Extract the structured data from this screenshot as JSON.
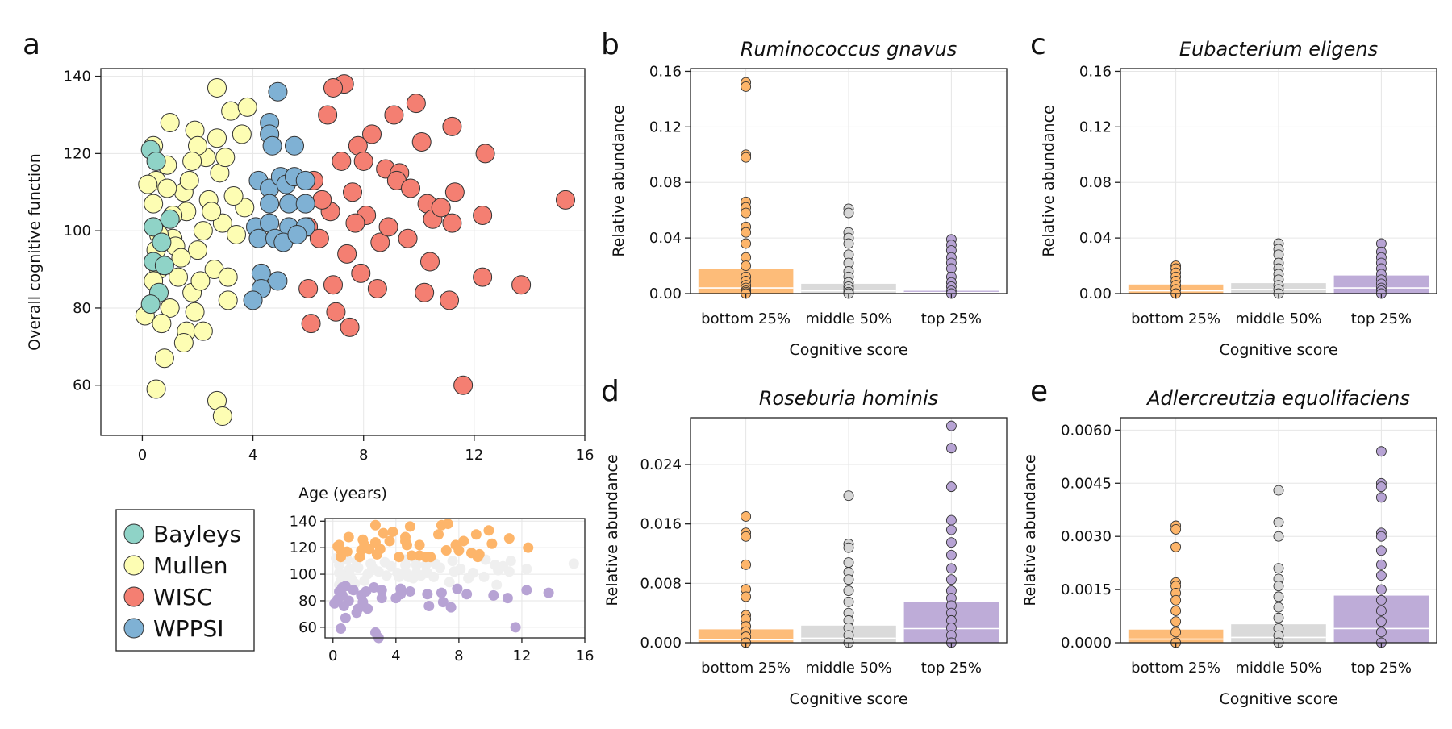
{
  "colors": {
    "Bayleys": "#8fd3c7",
    "Mullen": "#fdfdb3",
    "WISC": "#f47f72",
    "WPPSI": "#7fb1d4",
    "bottom": "#fdb56a",
    "middle": "#d6d6d6",
    "top": "#b7a3d4",
    "inset_middle": "#efefef"
  },
  "chart_data": [
    {
      "id": "a",
      "letter": "a",
      "type": "scatter",
      "xlabel": "Age (years)",
      "ylabel": "Overall cognitive function",
      "xlim": [
        -1.5,
        16
      ],
      "ylim": [
        47,
        142
      ],
      "xticks": [
        0,
        4,
        8,
        12,
        16
      ],
      "yticks": [
        60,
        80,
        100,
        120,
        140
      ],
      "series": [
        {
          "name": "Bayleys",
          "points": [
            [
              0.3,
              121
            ],
            [
              0.5,
              118
            ],
            [
              0.4,
              101
            ],
            [
              0.7,
              97
            ],
            [
              0.4,
              92
            ],
            [
              1.0,
              103
            ],
            [
              0.6,
              84
            ],
            [
              0.3,
              81
            ],
            [
              0.8,
              91
            ]
          ]
        },
        {
          "name": "Mullen",
          "points": [
            [
              2.7,
              137
            ],
            [
              1.0,
              128
            ],
            [
              0.4,
              122
            ],
            [
              1.9,
              126
            ],
            [
              0.5,
              113
            ],
            [
              2.3,
              119
            ],
            [
              0.2,
              112
            ],
            [
              3.2,
              131
            ],
            [
              3.8,
              132
            ],
            [
              2.0,
              122
            ],
            [
              0.9,
              117
            ],
            [
              1.5,
              110
            ],
            [
              2.7,
              124
            ],
            [
              3.6,
              125
            ],
            [
              0.4,
              107
            ],
            [
              1.6,
              105
            ],
            [
              2.2,
              100
            ],
            [
              1.1,
              98
            ],
            [
              0.5,
              95
            ],
            [
              2.9,
              102
            ],
            [
              3.4,
              99
            ],
            [
              2.0,
              95
            ],
            [
              0.6,
              90
            ],
            [
              1.3,
              88
            ],
            [
              1.8,
              84
            ],
            [
              2.6,
              90
            ],
            [
              0.4,
              87
            ],
            [
              1.0,
              80
            ],
            [
              3.1,
              88
            ],
            [
              0.1,
              78
            ],
            [
              0.7,
              76
            ],
            [
              1.6,
              74
            ],
            [
              2.2,
              74
            ],
            [
              0.8,
              67
            ],
            [
              0.5,
              59
            ],
            [
              2.7,
              56
            ],
            [
              2.9,
              52
            ],
            [
              3.1,
              82
            ],
            [
              1.5,
              71
            ],
            [
              1.9,
              79
            ],
            [
              2.4,
              108
            ],
            [
              3.7,
              106
            ],
            [
              2.8,
              115
            ],
            [
              1.2,
              96
            ],
            [
              0.4,
              101
            ],
            [
              3.0,
              119
            ],
            [
              1.7,
              113
            ],
            [
              2.5,
              105
            ],
            [
              0.9,
              111
            ],
            [
              1.4,
              93
            ],
            [
              2.1,
              87
            ],
            [
              0.6,
              99
            ],
            [
              3.3,
              109
            ],
            [
              1.8,
              118
            ],
            [
              1.1,
              104
            ]
          ]
        },
        {
          "name": "WISC",
          "points": [
            [
              7.3,
              138
            ],
            [
              6.9,
              137
            ],
            [
              9.9,
              133
            ],
            [
              11.2,
              127
            ],
            [
              6.7,
              130
            ],
            [
              9.1,
              130
            ],
            [
              8.3,
              125
            ],
            [
              10.1,
              123
            ],
            [
              12.4,
              120
            ],
            [
              7.8,
              122
            ],
            [
              7.2,
              118
            ],
            [
              8.8,
              116
            ],
            [
              6.2,
              113
            ],
            [
              9.3,
              115
            ],
            [
              7.6,
              110
            ],
            [
              10.3,
              107
            ],
            [
              11.3,
              110
            ],
            [
              12.3,
              104
            ],
            [
              6.8,
              105
            ],
            [
              8.1,
              104
            ],
            [
              9.6,
              98
            ],
            [
              10.5,
              103
            ],
            [
              6.0,
              101
            ],
            [
              11.2,
              102
            ],
            [
              7.4,
              94
            ],
            [
              8.6,
              97
            ],
            [
              10.4,
              92
            ],
            [
              6.0,
              85
            ],
            [
              7.9,
              89
            ],
            [
              8.5,
              85
            ],
            [
              10.2,
              84
            ],
            [
              6.9,
              86
            ],
            [
              11.1,
              82
            ],
            [
              12.3,
              88
            ],
            [
              13.7,
              86
            ],
            [
              15.3,
              108
            ],
            [
              6.1,
              76
            ],
            [
              7.0,
              79
            ],
            [
              7.5,
              75
            ],
            [
              11.6,
              60
            ],
            [
              9.2,
              113
            ],
            [
              8.0,
              118
            ],
            [
              6.5,
              108
            ],
            [
              9.7,
              111
            ],
            [
              7.7,
              102
            ],
            [
              10.8,
              106
            ],
            [
              8.9,
              101
            ],
            [
              6.4,
              98
            ]
          ]
        },
        {
          "name": "WPPSI",
          "points": [
            [
              4.9,
              136
            ],
            [
              4.6,
              128
            ],
            [
              4.6,
              125
            ],
            [
              4.7,
              122
            ],
            [
              5.5,
              122
            ],
            [
              4.2,
              113
            ],
            [
              4.6,
              111
            ],
            [
              5.0,
              114
            ],
            [
              5.2,
              112
            ],
            [
              5.5,
              114
            ],
            [
              5.9,
              113
            ],
            [
              4.6,
              107
            ],
            [
              5.3,
              107
            ],
            [
              5.9,
              107
            ],
            [
              4.1,
              101
            ],
            [
              4.6,
              102
            ],
            [
              5.3,
              101
            ],
            [
              5.9,
              101
            ],
            [
              4.2,
              98
            ],
            [
              4.8,
              98
            ],
            [
              5.1,
              97
            ],
            [
              5.6,
              99
            ],
            [
              4.3,
              89
            ],
            [
              4.9,
              87
            ],
            [
              4.3,
              85
            ],
            [
              4.0,
              82
            ]
          ]
        }
      ]
    },
    {
      "id": "a_inset",
      "type": "scatter",
      "xlim": [
        -0.5,
        16
      ],
      "ylim": [
        52,
        142
      ],
      "xticks": [
        0,
        4,
        8,
        12,
        16
      ],
      "yticks": [
        60,
        80,
        100,
        120,
        140
      ],
      "groups": [
        "bottom",
        "middle",
        "top"
      ]
    },
    {
      "id": "b",
      "letter": "b",
      "type": "bar",
      "title": "Ruminococcus gnavus",
      "xlabel": "Cognitive score",
      "ylabel": "Relative abundance",
      "categories": [
        "bottom 25%",
        "middle 50%",
        "top 25%"
      ],
      "ylim": [
        0,
        0.162
      ],
      "yticks": [
        "0.00",
        "0.04",
        "0.08",
        "0.12",
        "0.16"
      ],
      "bars": [
        0.018,
        0.007,
        0.002
      ],
      "medians": [
        0.004,
        0.002,
        0.0008
      ],
      "points": [
        [
          0.152,
          0.149,
          0.1,
          0.098,
          0.066,
          0.062,
          0.058,
          0.048,
          0.044,
          0.036,
          0.026,
          0.02,
          0.012,
          0.009,
          0.006,
          0.004,
          0.002,
          0.001,
          0
        ],
        [
          0.061,
          0.058,
          0.044,
          0.04,
          0.036,
          0.028,
          0.022,
          0.016,
          0.012,
          0.008,
          0.005,
          0.003,
          0.001,
          0
        ],
        [
          0.039,
          0.035,
          0.031,
          0.026,
          0.022,
          0.018,
          0.012,
          0.008,
          0.005,
          0.002,
          0
        ]
      ]
    },
    {
      "id": "c",
      "letter": "c",
      "type": "bar",
      "title": "Eubacterium eligens",
      "xlabel": "Cognitive score",
      "ylabel": "Relative abundance",
      "categories": [
        "bottom 25%",
        "middle 50%",
        "top 25%"
      ],
      "ylim": [
        0,
        0.162
      ],
      "yticks": [
        "0.00",
        "0.04",
        "0.08",
        "0.12",
        "0.16"
      ],
      "bars": [
        0.0065,
        0.0075,
        0.013
      ],
      "medians": [
        0.002,
        0.003,
        0.004
      ],
      "points": [
        [
          0.02,
          0.018,
          0.015,
          0.012,
          0.009,
          0.006,
          0.003,
          0
        ],
        [
          0.036,
          0.032,
          0.028,
          0.022,
          0.018,
          0.014,
          0.01,
          0.006,
          0.003,
          0
        ],
        [
          0.036,
          0.03,
          0.026,
          0.022,
          0.018,
          0.014,
          0.01,
          0.007,
          0.004,
          0.002,
          0
        ]
      ]
    },
    {
      "id": "d",
      "letter": "d",
      "type": "bar",
      "title": "Roseburia hominis",
      "xlabel": "Cognitive score",
      "ylabel": "Relative abundance",
      "categories": [
        "bottom 25%",
        "middle 50%",
        "top 25%"
      ],
      "ylim": [
        0,
        0.0303
      ],
      "yticks": [
        "0.000",
        "0.008",
        "0.016",
        "0.024"
      ],
      "bars": [
        0.0018,
        0.0023,
        0.0055
      ],
      "medians": [
        0.0004,
        0.0006,
        0.0019
      ],
      "points": [
        [
          0.017,
          0.0148,
          0.0143,
          0.0105,
          0.0072,
          0.0062,
          0.0037,
          0.0032,
          0.0022,
          0.0015,
          0.0008,
          0
        ],
        [
          0.0198,
          0.0133,
          0.0128,
          0.0108,
          0.0095,
          0.0085,
          0.007,
          0.0055,
          0.004,
          0.003,
          0.002,
          0.001,
          0
        ],
        [
          0.0292,
          0.0262,
          0.021,
          0.0165,
          0.0152,
          0.0135,
          0.0118,
          0.01,
          0.0085,
          0.007,
          0.006,
          0.005,
          0.004,
          0.003,
          0.002,
          0.001,
          0
        ]
      ]
    },
    {
      "id": "e",
      "letter": "e",
      "type": "bar",
      "title": "Adlercreutzia equolifaciens",
      "xlabel": "Cognitive score",
      "ylabel": "Relative abundance",
      "categories": [
        "bottom 25%",
        "middle 50%",
        "top 25%"
      ],
      "ylim": [
        0,
        0.00635
      ],
      "yticks": [
        "0.0000",
        "0.0015",
        "0.0030",
        "0.0045",
        "0.0060"
      ],
      "bars": [
        0.00037,
        0.00052,
        0.00133
      ],
      "medians": [
        0.0001,
        0.00015,
        0.0004
      ],
      "points": [
        [
          0.0033,
          0.0032,
          0.0027,
          0.0017,
          0.0016,
          0.0014,
          0.0012,
          0.0009,
          0.0006,
          0.0003,
          0
        ],
        [
          0.0043,
          0.0034,
          0.003,
          0.0021,
          0.0018,
          0.0016,
          0.0013,
          0.001,
          0.0007,
          0.0004,
          0.0002,
          0
        ],
        [
          0.0054,
          0.0045,
          0.0044,
          0.0041,
          0.0031,
          0.003,
          0.0026,
          0.0022,
          0.0019,
          0.0015,
          0.0012,
          0.0009,
          0.0006,
          0.0003,
          0
        ]
      ]
    }
  ]
}
